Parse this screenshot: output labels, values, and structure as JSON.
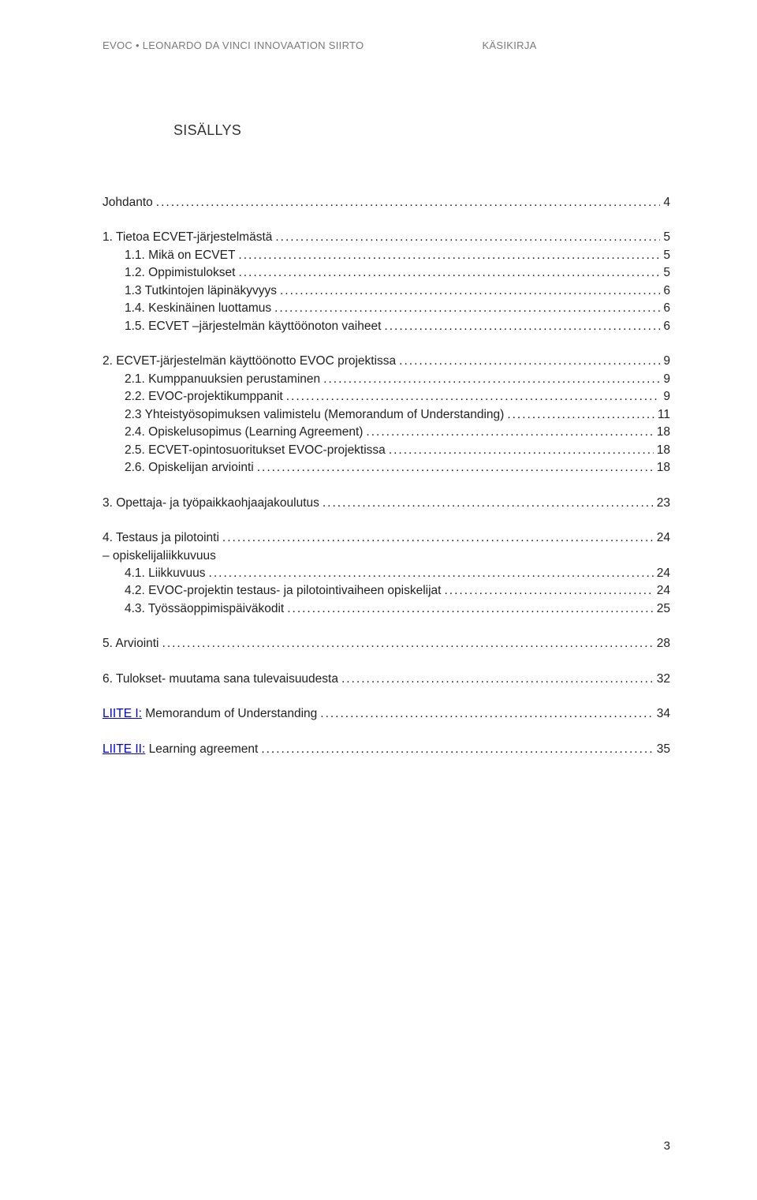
{
  "header": {
    "left": "EVOC • LEONARDO DA VINCI INNOVAATION SIIRTO",
    "right": "KÄSIKIRJA"
  },
  "title": "SISÄLLYS",
  "toc": [
    {
      "type": "block",
      "items": [
        {
          "label": "Johdanto",
          "page": "4",
          "indent": false
        }
      ]
    },
    {
      "type": "block",
      "items": [
        {
          "label": "1. Tietoa ECVET-järjestelmästä",
          "page": "5",
          "indent": false
        },
        {
          "label": "1.1. Mikä on ECVET",
          "page": "5",
          "indent": true
        },
        {
          "label": "1.2. Oppimistulokset",
          "page": "5",
          "indent": true
        },
        {
          "label": "1.3 Tutkintojen läpinäkyvyys",
          "page": "6",
          "indent": true
        },
        {
          "label": "1.4. Keskinäinen luottamus",
          "page": "6",
          "indent": true
        },
        {
          "label": "1.5. ECVET –järjestelmän käyttöönoton vaiheet",
          "page": "6",
          "indent": true
        }
      ]
    },
    {
      "type": "block",
      "items": [
        {
          "label": "2. ECVET-järjestelmän käyttöönotto EVOC projektissa",
          "page": "9",
          "indent": false
        },
        {
          "label": "2.1. Kumppanuuksien perustaminen",
          "page": "9",
          "indent": true
        },
        {
          "label": "2.2. EVOC-projektikumppanit",
          "page": "9",
          "indent": true
        },
        {
          "label": "2.3 Yhteistyösopimuksen valimistelu  (Memorandum of Understanding)",
          "page": "11",
          "indent": true
        },
        {
          "label": "2.4. Opiskelusopimus (Learning Agreement)",
          "page": "18",
          "indent": true
        },
        {
          "label": "2.5. ECVET-opintosuoritukset EVOC-projektissa",
          "page": "18",
          "indent": true
        },
        {
          "label": "2.6. Opiskelijan arviointi",
          "page": "18",
          "indent": true
        }
      ]
    },
    {
      "type": "block",
      "items": [
        {
          "label": "3. Opettaja- ja työpaikkaohjaajakoulutus",
          "page": "23",
          "indent": false
        }
      ]
    },
    {
      "type": "block",
      "items": [
        {
          "label": "4. Testaus ja pilotointi",
          "page": "24",
          "indent": false
        },
        {
          "label": " – opiskelijaliikkuvuus",
          "page": "",
          "indent": false,
          "nodots": true
        },
        {
          "label": "4.1. Liikkuvuus",
          "page": "24",
          "indent": true
        },
        {
          "label": "4.2. EVOC-projektin testaus- ja pilotointivaiheen opiskelijat",
          "page": "24",
          "indent": true
        },
        {
          "label": "4.3. Työssäoppimispäiväkodit",
          "page": "25",
          "indent": true
        }
      ]
    },
    {
      "type": "block",
      "items": [
        {
          "label": "5. Arviointi",
          "page": "28",
          "indent": false
        }
      ]
    },
    {
      "type": "block",
      "items": [
        {
          "label": "6. Tulokset- muutama sana tulevaisuudesta",
          "page": "32",
          "indent": false
        }
      ]
    },
    {
      "type": "block",
      "items": [
        {
          "label": "LIITE I: Memorandum of Understanding",
          "page": "34",
          "indent": false,
          "link": "LIITE I:"
        }
      ]
    },
    {
      "type": "block",
      "items": [
        {
          "label": "LIITE II: Learning agreement",
          "page": "35",
          "indent": false,
          "link": "LIITE II:"
        }
      ]
    }
  ],
  "pageNumber": "3",
  "colors": {
    "headerText": "#7a7a7a",
    "bodyText": "#222222",
    "link": "#0000ee",
    "background": "#ffffff"
  }
}
